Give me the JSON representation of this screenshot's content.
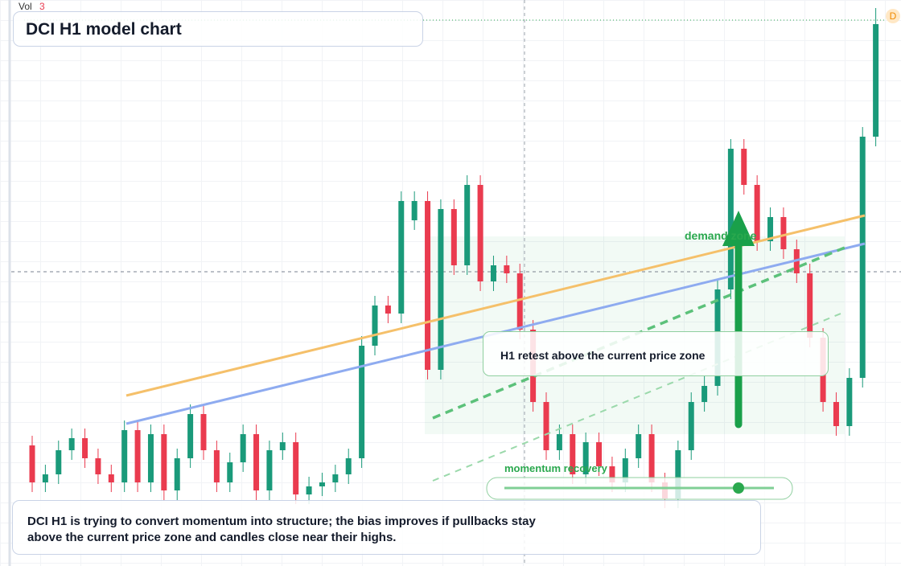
{
  "chart_data": {
    "type": "candlestick",
    "title": "DCI H1 model chart",
    "volume_label": "Vol",
    "volume_value": 3,
    "badge": "D",
    "up_color": "#1a9a7a",
    "down_color": "#ea3b4f",
    "ylim": [
      0,
      704
    ],
    "open": [
      150,
      104,
      114,
      144,
      159,
      134,
      114,
      104,
      169,
      104,
      164,
      94,
      134,
      189,
      144,
      104,
      129,
      164,
      94,
      144,
      154,
      89,
      99,
      104,
      114,
      134,
      274,
      324,
      314,
      430,
      454,
      244,
      444,
      374,
      474,
      354,
      374,
      364,
      294,
      204,
      144,
      164,
      114,
      154,
      124,
      104,
      134,
      164,
      104,
      84,
      144,
      204,
      224,
      344,
      519,
      474,
      404,
      434,
      394,
      364,
      284,
      204,
      174,
      234,
      534
    ],
    "high": [
      162,
      126,
      156,
      171,
      171,
      146,
      126,
      181,
      181,
      176,
      176,
      146,
      201,
      201,
      156,
      141,
      176,
      176,
      156,
      166,
      166,
      111,
      116,
      126,
      146,
      286,
      336,
      336,
      466,
      466,
      466,
      456,
      456,
      486,
      486,
      386,
      386,
      376,
      306,
      216,
      176,
      176,
      166,
      166,
      136,
      146,
      176,
      176,
      116,
      156,
      216,
      236,
      356,
      531,
      531,
      486,
      446,
      446,
      406,
      376,
      296,
      216,
      246,
      546,
      694
    ],
    "low": [
      92,
      92,
      102,
      132,
      122,
      102,
      92,
      92,
      92,
      92,
      82,
      82,
      122,
      132,
      92,
      92,
      117,
      82,
      82,
      132,
      77,
      77,
      87,
      92,
      102,
      122,
      262,
      302,
      302,
      418,
      232,
      232,
      362,
      362,
      342,
      342,
      352,
      282,
      192,
      132,
      132,
      102,
      102,
      112,
      92,
      92,
      122,
      92,
      72,
      72,
      132,
      192,
      212,
      332,
      462,
      392,
      392,
      382,
      352,
      272,
      192,
      162,
      162,
      222,
      522
    ],
    "close": [
      104,
      114,
      144,
      159,
      134,
      114,
      104,
      169,
      104,
      164,
      94,
      134,
      189,
      144,
      104,
      129,
      164,
      94,
      144,
      154,
      89,
      99,
      104,
      114,
      134,
      274,
      324,
      314,
      454,
      454,
      244,
      444,
      374,
      474,
      354,
      374,
      364,
      294,
      204,
      144,
      164,
      114,
      154,
      124,
      104,
      134,
      164,
      104,
      84,
      144,
      204,
      224,
      344,
      519,
      474,
      404,
      434,
      394,
      364,
      284,
      204,
      174,
      234,
      534,
      674
    ],
    "annotations": [
      "demand zone",
      "momentum recovery",
      "H1 retest above the current price zone"
    ],
    "note": "DCI H1 is trying to convert momentum into structure; the bias improves if pullbacks stay above the current price zone and candles close near their highs."
  }
}
